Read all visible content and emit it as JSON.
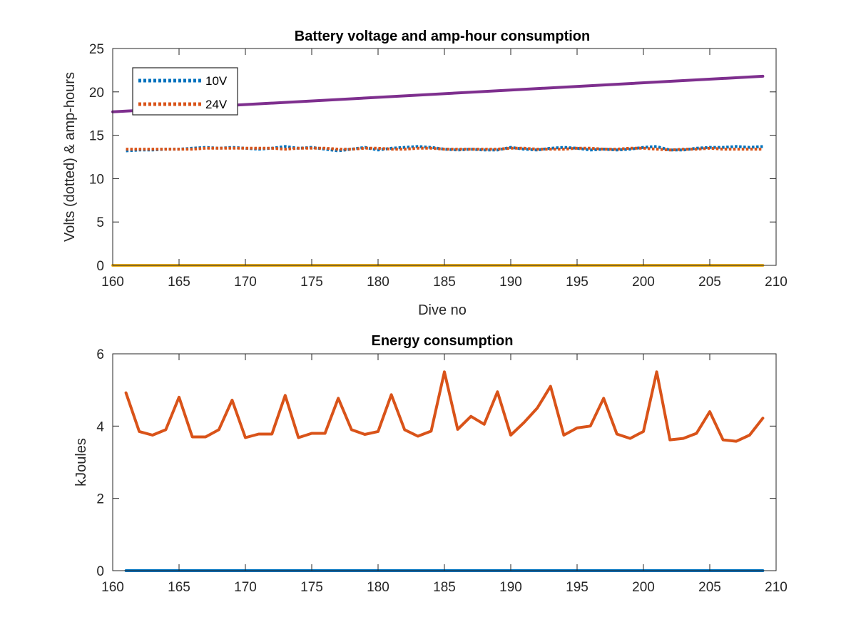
{
  "chart_data": [
    {
      "type": "line",
      "title": "Battery voltage and amp-hour consumption",
      "xlabel": "Dive no",
      "ylabel": "Volts (dotted) & amp-hours",
      "xlim": [
        160,
        210
      ],
      "ylim": [
        0,
        25
      ],
      "xticks": [
        "160",
        "165",
        "170",
        "175",
        "180",
        "185",
        "190",
        "195",
        "200",
        "205",
        "210"
      ],
      "yticks": [
        "0",
        "5",
        "10",
        "15",
        "20",
        "25"
      ],
      "grid": false,
      "legend_position": "top-left",
      "legend": [
        "10V",
        "24V"
      ],
      "series": [
        {
          "name": "10V",
          "style": "dotted",
          "color": "#0072BD",
          "x": [
            161,
            162,
            163,
            164,
            165,
            166,
            167,
            168,
            169,
            170,
            171,
            172,
            173,
            174,
            175,
            176,
            177,
            178,
            179,
            180,
            181,
            182,
            183,
            184,
            185,
            186,
            187,
            188,
            189,
            190,
            191,
            192,
            193,
            194,
            195,
            196,
            197,
            198,
            199,
            200,
            201,
            202,
            203,
            204,
            205,
            206,
            207,
            208,
            209
          ],
          "y": [
            13.2,
            13.3,
            13.3,
            13.4,
            13.4,
            13.5,
            13.6,
            13.5,
            13.6,
            13.5,
            13.4,
            13.5,
            13.7,
            13.5,
            13.6,
            13.4,
            13.2,
            13.4,
            13.6,
            13.3,
            13.5,
            13.6,
            13.7,
            13.6,
            13.4,
            13.3,
            13.4,
            13.3,
            13.3,
            13.6,
            13.4,
            13.3,
            13.5,
            13.6,
            13.5,
            13.3,
            13.4,
            13.3,
            13.4,
            13.6,
            13.7,
            13.3,
            13.3,
            13.5,
            13.6,
            13.6,
            13.7,
            13.6,
            13.7
          ]
        },
        {
          "name": "24V",
          "style": "dotted",
          "color": "#D95319",
          "x": [
            161,
            162,
            163,
            164,
            165,
            166,
            167,
            168,
            169,
            170,
            171,
            172,
            173,
            174,
            175,
            176,
            177,
            178,
            179,
            180,
            181,
            182,
            183,
            184,
            185,
            186,
            187,
            188,
            189,
            190,
            191,
            192,
            193,
            194,
            195,
            196,
            197,
            198,
            199,
            200,
            201,
            202,
            203,
            204,
            205,
            206,
            207,
            208,
            209
          ],
          "y": [
            13.4,
            13.4,
            13.4,
            13.4,
            13.4,
            13.4,
            13.5,
            13.5,
            13.5,
            13.5,
            13.5,
            13.5,
            13.4,
            13.5,
            13.5,
            13.5,
            13.4,
            13.4,
            13.5,
            13.5,
            13.4,
            13.4,
            13.5,
            13.5,
            13.4,
            13.4,
            13.4,
            13.4,
            13.4,
            13.5,
            13.5,
            13.4,
            13.4,
            13.4,
            13.5,
            13.5,
            13.4,
            13.4,
            13.5,
            13.5,
            13.4,
            13.3,
            13.4,
            13.4,
            13.5,
            13.4,
            13.4,
            13.4,
            13.4
          ]
        },
        {
          "style": "solid",
          "color": "#EDB120",
          "x": [
            160,
            209
          ],
          "y": [
            0,
            0
          ]
        },
        {
          "style": "solid",
          "color": "#7E2F8E",
          "x": [
            160,
            209
          ],
          "y": [
            17.7,
            21.8
          ]
        }
      ]
    },
    {
      "type": "line",
      "title": "Energy consumption",
      "xlabel": "",
      "ylabel": "kJoules",
      "xlim": [
        160,
        210
      ],
      "ylim": [
        0,
        6
      ],
      "xticks": [
        "160",
        "165",
        "170",
        "175",
        "180",
        "185",
        "190",
        "195",
        "200",
        "205",
        "210"
      ],
      "yticks": [
        "0",
        "2",
        "4",
        "6"
      ],
      "grid": false,
      "series": [
        {
          "style": "solid",
          "color": "#0072BD",
          "x": [
            161,
            209
          ],
          "y": [
            0,
            0
          ]
        },
        {
          "style": "solid",
          "color": "#D95319",
          "x": [
            161,
            162,
            163,
            164,
            165,
            166,
            167,
            168,
            169,
            170,
            171,
            172,
            173,
            174,
            175,
            176,
            177,
            178,
            179,
            180,
            181,
            182,
            183,
            184,
            185,
            186,
            187,
            188,
            189,
            190,
            191,
            192,
            193,
            194,
            195,
            196,
            197,
            198,
            199,
            200,
            201,
            202,
            203,
            204,
            205,
            206,
            207,
            208,
            209
          ],
          "y": [
            4.92,
            3.85,
            3.75,
            3.9,
            4.8,
            3.7,
            3.7,
            3.9,
            4.72,
            3.68,
            3.78,
            3.78,
            4.85,
            3.68,
            3.8,
            3.8,
            4.77,
            3.9,
            3.77,
            3.85,
            4.87,
            3.9,
            3.72,
            3.86,
            5.5,
            3.91,
            4.27,
            4.05,
            4.95,
            3.75,
            4.1,
            4.5,
            5.1,
            3.75,
            3.95,
            4.0,
            4.77,
            3.78,
            3.66,
            3.85,
            5.5,
            3.62,
            3.66,
            3.8,
            4.4,
            3.62,
            3.58,
            3.75,
            4.22
          ]
        }
      ]
    }
  ]
}
